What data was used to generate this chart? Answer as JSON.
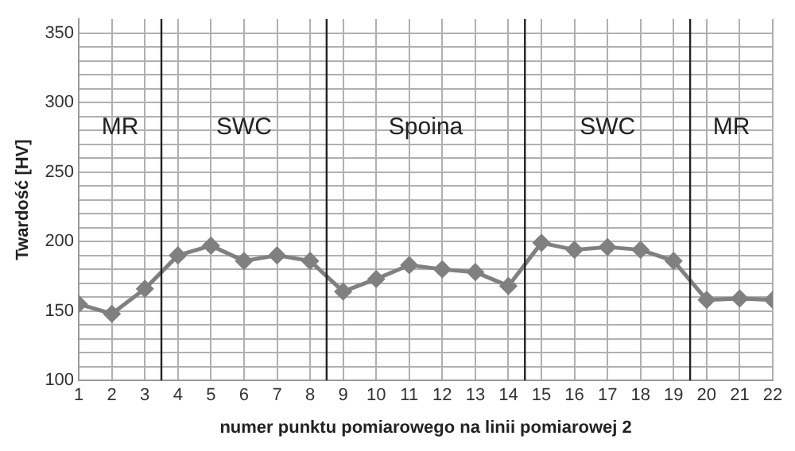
{
  "chart_data": {
    "type": "line",
    "xlabel": "numer punktu pomiarowego na linii pomiarowej 2",
    "ylabel": "Twardość [HV]",
    "x": [
      1,
      2,
      3,
      4,
      5,
      6,
      7,
      8,
      9,
      10,
      11,
      12,
      13,
      14,
      15,
      16,
      17,
      18,
      19,
      20,
      21,
      22
    ],
    "series": [
      {
        "color": "#808080",
        "values": [
          155,
          148,
          166,
          190,
          197,
          186,
          190,
          186,
          164,
          173,
          183,
          180,
          178,
          168,
          199,
          194,
          196,
          194,
          186,
          158,
          159,
          158
        ]
      }
    ],
    "xlim": [
      1,
      22
    ],
    "xticks": [
      1,
      2,
      3,
      4,
      5,
      6,
      7,
      8,
      9,
      10,
      11,
      12,
      13,
      14,
      15,
      16,
      17,
      18,
      19,
      20,
      21,
      22
    ],
    "ylim": [
      100,
      360
    ],
    "yticks": [
      100,
      {
        "value": 110,
        "label": null
      },
      {
        "value": 120,
        "label": null
      },
      {
        "value": 130,
        "label": null
      },
      {
        "value": 140,
        "label": null
      },
      150,
      {
        "value": 160,
        "label": null
      },
      {
        "value": 170,
        "label": null
      },
      {
        "value": 180,
        "label": null
      },
      {
        "value": 190,
        "label": null
      },
      200,
      {
        "value": 210,
        "label": null
      },
      {
        "value": 220,
        "label": null
      },
      {
        "value": 230,
        "label": null
      },
      {
        "value": 240,
        "label": null
      },
      250,
      {
        "value": 260,
        "label": null
      },
      {
        "value": 270,
        "label": null
      },
      {
        "value": 280,
        "label": null
      },
      {
        "value": 290,
        "label": null
      },
      300,
      {
        "value": 310,
        "label": null
      },
      {
        "value": 320,
        "label": null
      },
      {
        "value": 330,
        "label": null
      },
      {
        "value": 340,
        "label": null
      },
      350
    ],
    "ref_lines": [
      {
        "axis": "x",
        "value": 3.5,
        "color": "#222222"
      },
      {
        "axis": "x",
        "value": 8.5,
        "color": "#222222"
      },
      {
        "axis": "x",
        "value": 14.5,
        "color": "#222222"
      },
      {
        "axis": "x",
        "value": 19.5,
        "color": "#222222"
      }
    ],
    "annotations": [
      "MR",
      "SWC",
      "Spoina",
      "SWC",
      "MR"
    ],
    "grid": true,
    "legend": false,
    "marker": "diamond",
    "line_style": "solid"
  }
}
